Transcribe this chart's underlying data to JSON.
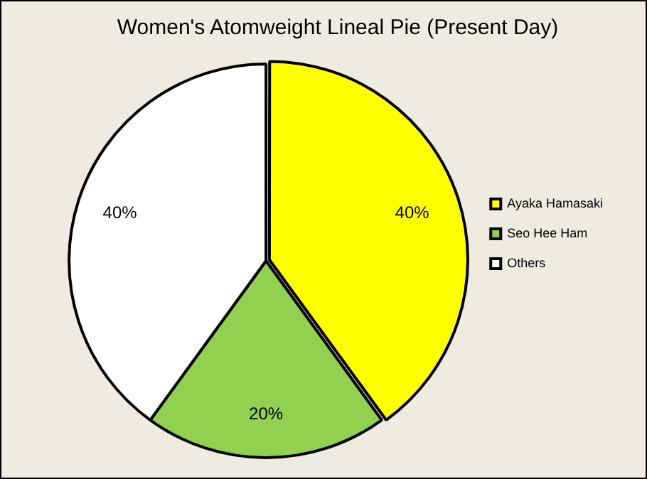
{
  "chart_data": {
    "type": "pie",
    "title": "Women's Atomweight Lineal Pie (Present Day)",
    "categories": [
      "Ayaka Hamasaki",
      "Seo Hee Ham",
      "Others"
    ],
    "values": [
      40,
      20,
      40
    ],
    "colors": [
      "#ffff00",
      "#92d050",
      "#ffffff"
    ],
    "value_labels": [
      "40%",
      "20%",
      "40%"
    ],
    "legend": "right"
  }
}
